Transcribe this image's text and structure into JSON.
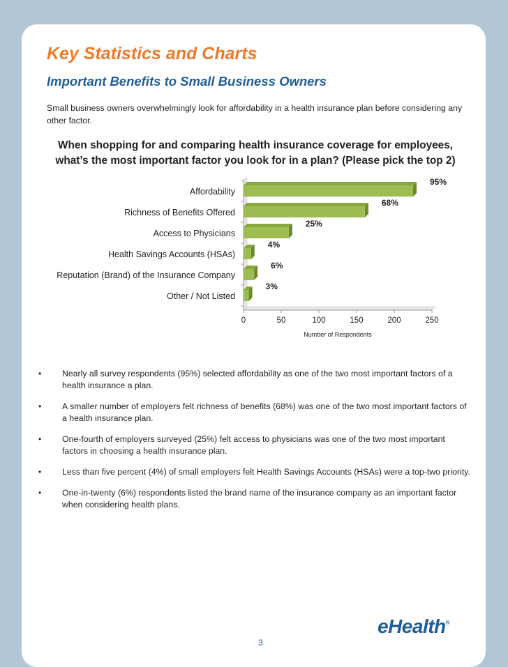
{
  "title": "Key Statistics and Charts",
  "subtitle": "Important Benefits to Small Business Owners",
  "intro": "Small business owners overwhelmingly look for affordability in a health insurance plan before considering any other factor.",
  "question": "When shopping for and comparing health insurance coverage for employees, what’s the most important factor you look for in a plan? (Please pick the top 2)",
  "chart_data": {
    "type": "bar",
    "orientation": "horizontal",
    "title": "",
    "categories": [
      "Affordability",
      "Richness of Benefits Offered",
      "Access to Physicians",
      "Health Savings Accounts (HSAs)",
      "Reputation (Brand) of the Insurance Company",
      "Other / Not Listed"
    ],
    "values": [
      225,
      161,
      60,
      10,
      14,
      7
    ],
    "data_labels": [
      "95%",
      "68%",
      "25%",
      "4%",
      "6%",
      "3%"
    ],
    "xlabel": "Number of  Respondents",
    "ylabel": "",
    "xlim": [
      0,
      250
    ],
    "xticks": [
      0,
      50,
      100,
      150,
      200,
      250
    ],
    "bar_color": "#9dbc52",
    "grid": false
  },
  "bullets": [
    "Nearly all survey respondents (95%) selected affordability as one of the two most important factors of a health insurance a plan.",
    "A smaller number of employers felt richness of benefits (68%) was one of the two most important factors of a health insurance plan.",
    "One-fourth of employers surveyed (25%) felt access to physicians was one of the two most important factors in choosing a health insurance plan.",
    "Less than five percent (4%) of small employers felt Health Savings Accounts (HSAs) were a top-two priority.",
    "One-in-twenty (6%) respondents listed the brand name of the insurance company as an important factor when considering health plans."
  ],
  "bullet_symbol": "•",
  "page_number": "3",
  "logo_text": "eHealth",
  "logo_mark": "®",
  "colors": {
    "title": "#ec7c2a",
    "subtitle": "#1f5e98",
    "background": "#b3c6d6",
    "bar": "#9dbc52"
  }
}
